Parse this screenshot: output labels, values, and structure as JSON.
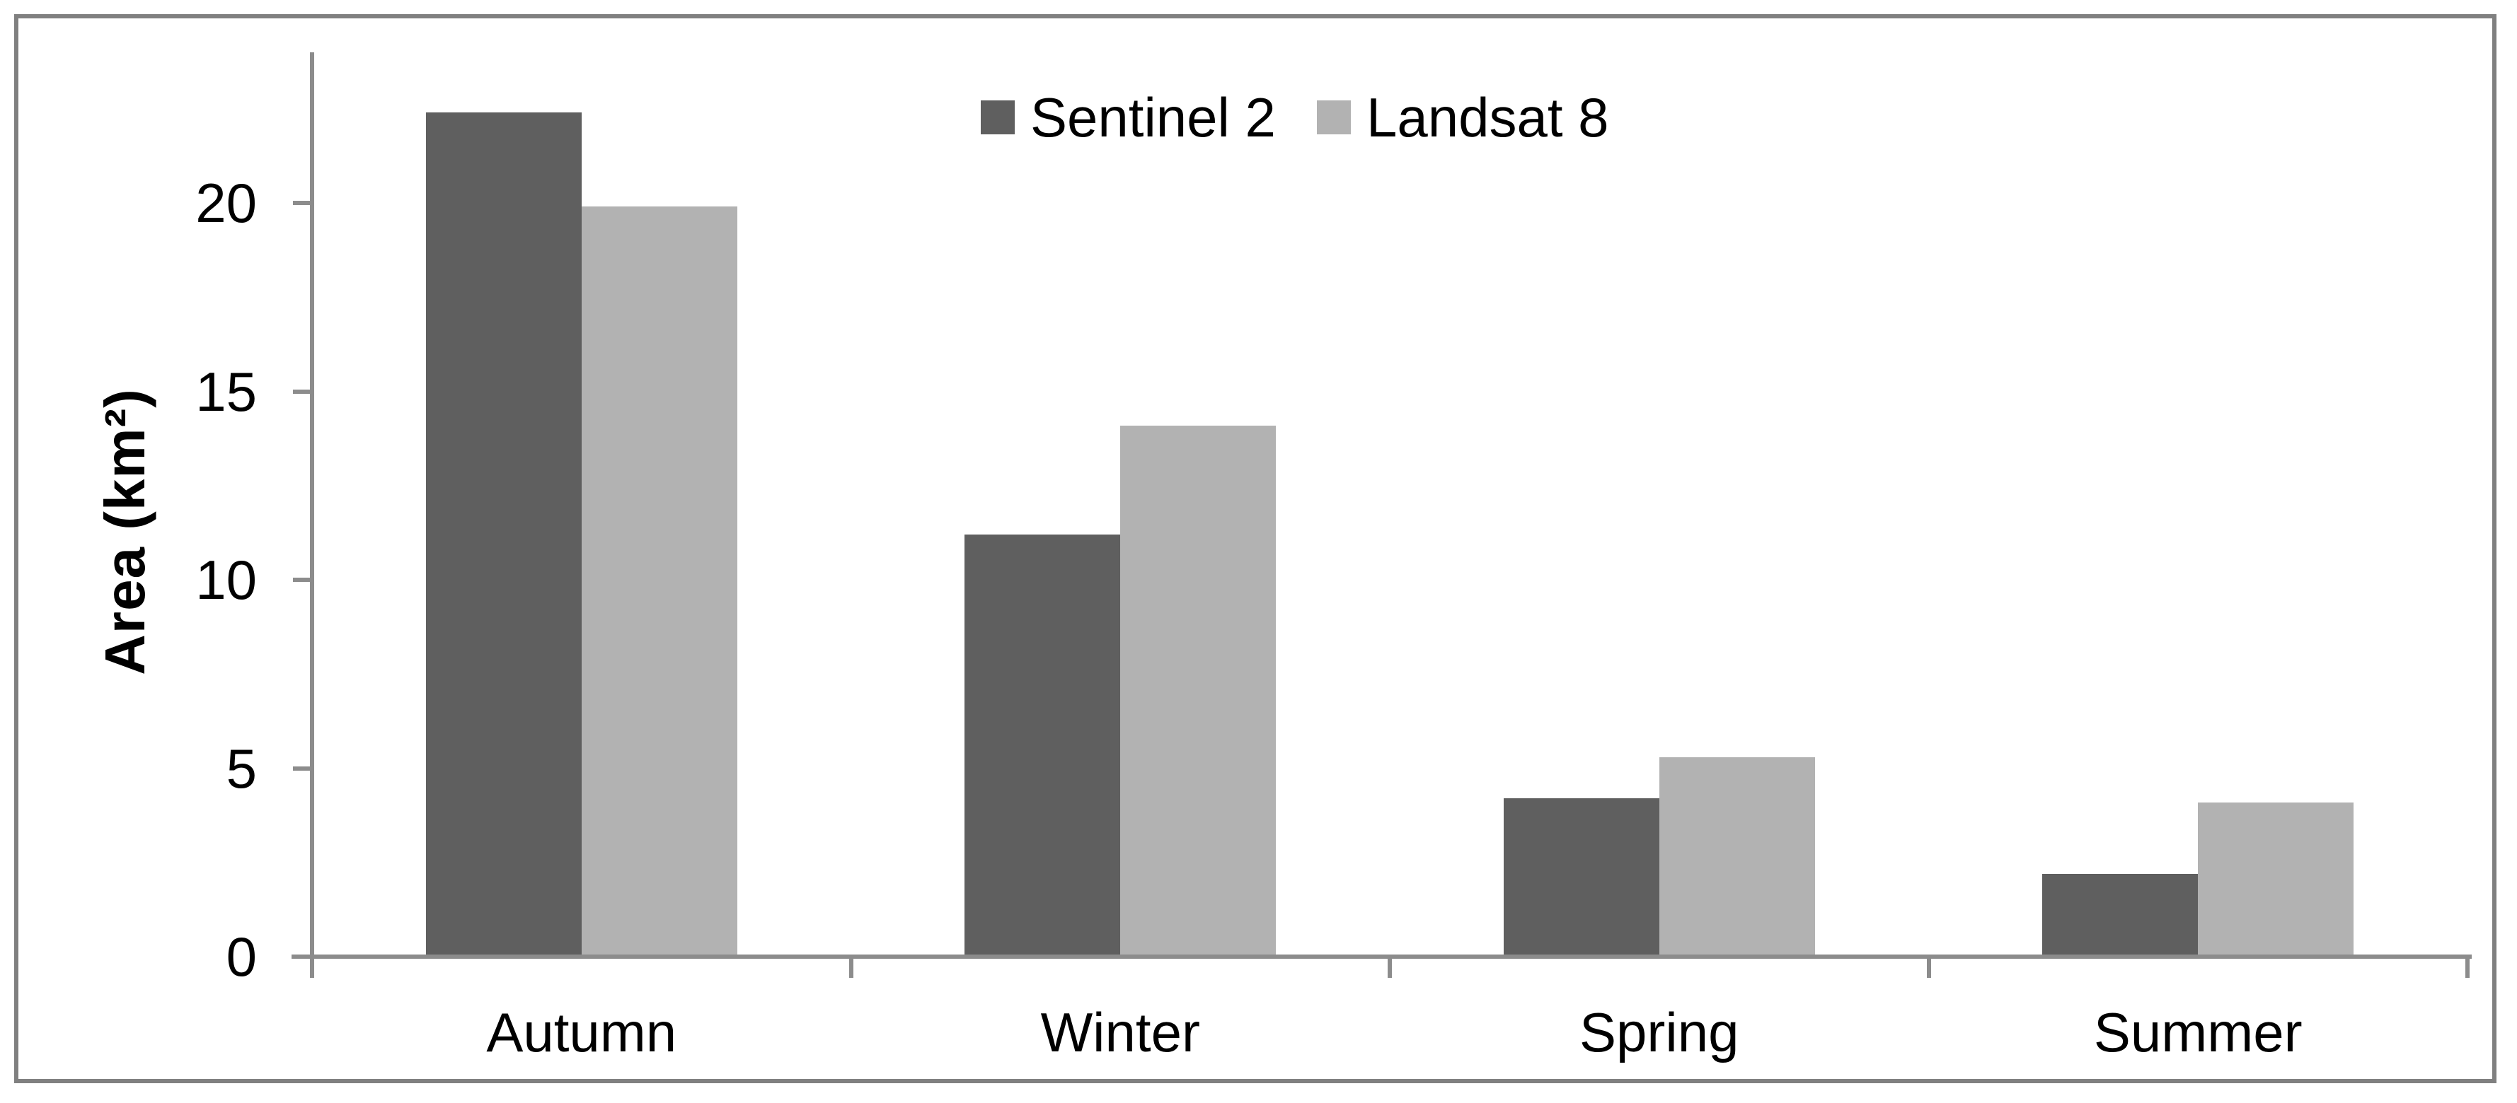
{
  "figure": {
    "kind": "seasonal-area-bar-chart",
    "background": "#ffffff"
  },
  "colors": {
    "border": "#808080",
    "axis": "#8c8c8c",
    "text": "#000000",
    "sentinel2_bar": "#5f5f5f",
    "landsat8_bar": "#b2b2b2"
  },
  "chart_data": {
    "type": "bar",
    "title": "",
    "categories": [
      "Autumn",
      "Winter",
      "Spring",
      "Summer"
    ],
    "series": [
      {
        "name": "Sentinel 2",
        "color": "#5f5f5f",
        "values": [
          22.4,
          11.2,
          4.2,
          2.2
        ]
      },
      {
        "name": "Landsat 8",
        "color": "#b2b2b2",
        "values": [
          19.9,
          14.1,
          5.3,
          4.1
        ]
      }
    ],
    "xlabel": "",
    "ylabel": "Area (km²)",
    "ylim": [
      0,
      24
    ],
    "yticks": [
      0,
      5,
      10,
      15,
      20
    ],
    "grid": false,
    "legend_position": "top-center"
  }
}
